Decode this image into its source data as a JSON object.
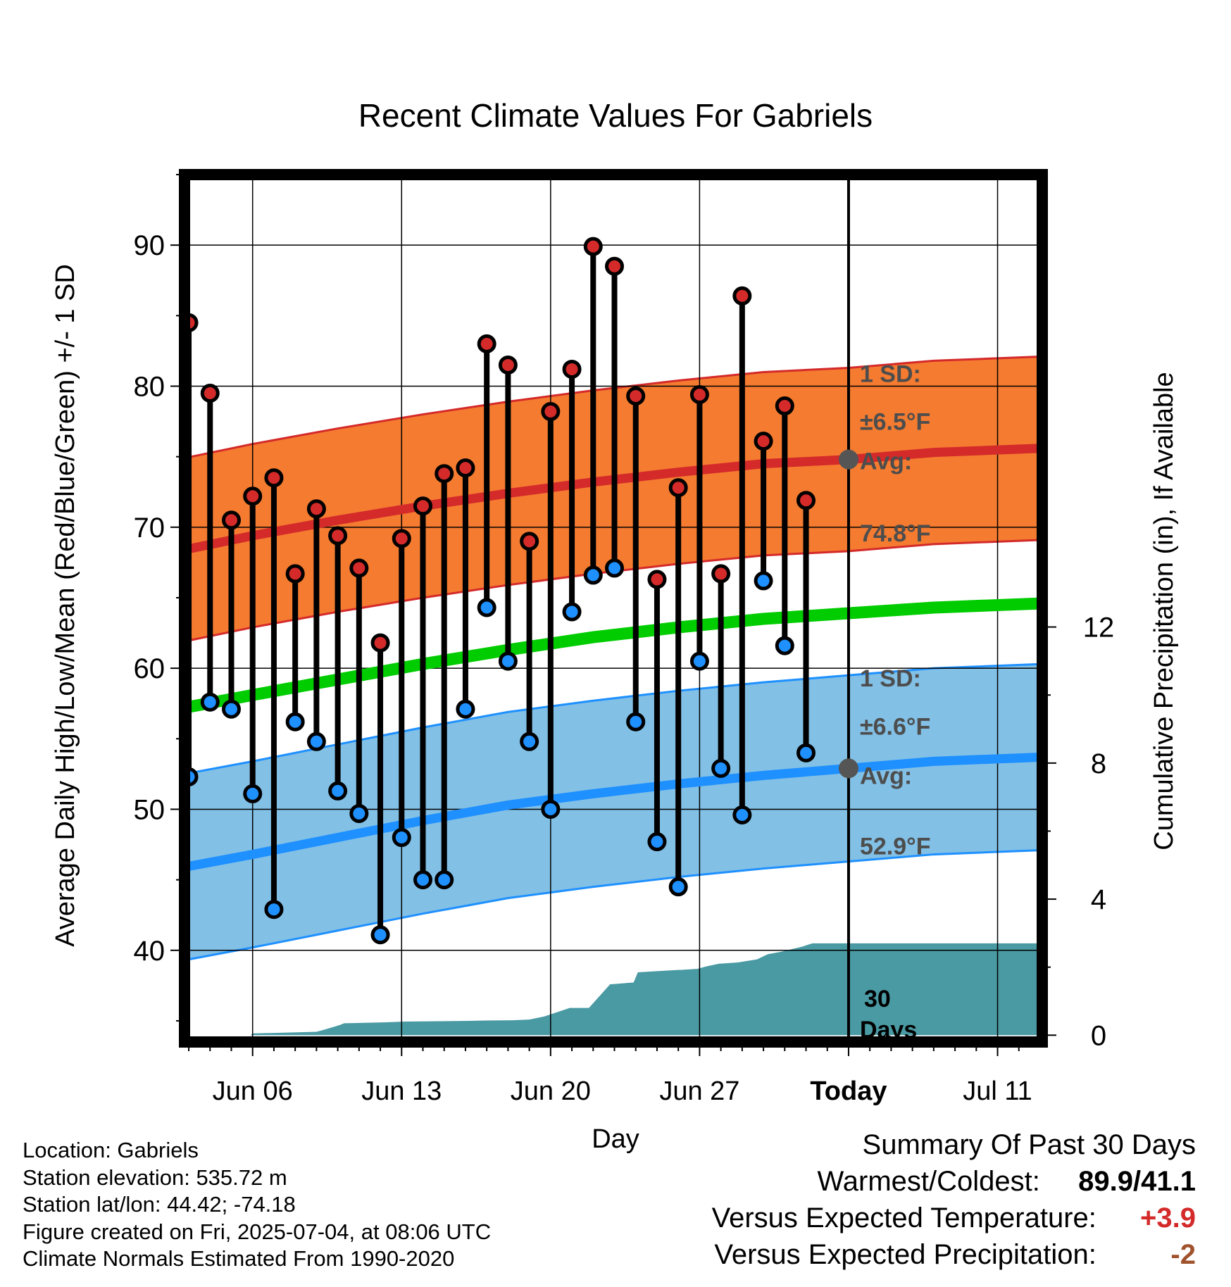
{
  "chart_data": {
    "type": "line",
    "title": "Recent Climate Values For Gabriels",
    "xlabel": "Day",
    "ylabel_left": "Average Daily High/Low/Mean (Red/Blue/Green) +/- 1 SD",
    "ylabel_right": "Cumulative Precipitation (in), If Available",
    "x_ticks": [
      {
        "day": 6,
        "label": "Jun 06"
      },
      {
        "day": 13,
        "label": "Jun 13"
      },
      {
        "day": 20,
        "label": "Jun 20"
      },
      {
        "day": 27,
        "label": "Jun 27"
      },
      {
        "day": 34,
        "label": "Today"
      },
      {
        "day": 41,
        "label": "Jul 11"
      }
    ],
    "xlim": [
      2.8,
      43.1
    ],
    "ylim_left": [
      33.5,
      95
    ],
    "ylim_right": [
      -0.2,
      25.3
    ],
    "y_ticks_left": [
      40,
      50,
      60,
      70,
      80,
      90
    ],
    "y_ticks_right": [
      0,
      4,
      8,
      12
    ],
    "today": 34,
    "observations": {
      "days": [
        3,
        4,
        5,
        6,
        7,
        8,
        9,
        10,
        11,
        12,
        13,
        14,
        15,
        16,
        17,
        18,
        19,
        20,
        21,
        22,
        23,
        24,
        25,
        26,
        27,
        28,
        29,
        30,
        31,
        32,
        33
      ],
      "high": [
        84.5,
        79.5,
        70.5,
        72.2,
        73.5,
        66.7,
        71.3,
        69.4,
        67.1,
        61.8,
        69.2,
        71.5,
        73.8,
        74.2,
        83.0,
        81.5,
        69.0,
        78.2,
        81.2,
        89.9,
        88.5,
        79.3,
        66.3,
        72.8,
        79.4,
        66.7,
        86.4,
        76.1,
        78.6,
        71.9,
        null
      ],
      "low": [
        52.3,
        57.6,
        57.1,
        51.1,
        42.9,
        56.2,
        54.8,
        51.3,
        49.7,
        41.1,
        48.0,
        45.0,
        45.0,
        57.1,
        64.3,
        60.5,
        54.8,
        50.0,
        64.0,
        66.6,
        67.1,
        56.2,
        47.7,
        44.5,
        60.5,
        52.9,
        49.6,
        66.2,
        61.6,
        54.0,
        null
      ]
    },
    "normals": {
      "days": [
        2.8,
        6,
        10,
        14,
        18,
        22,
        26,
        30,
        34,
        38,
        43.1
      ],
      "avg_high": [
        68.4,
        69.4,
        70.5,
        71.5,
        72.4,
        73.2,
        73.9,
        74.5,
        74.8,
        75.3,
        75.6
      ],
      "avg_low": [
        45.9,
        46.8,
        48.0,
        49.2,
        50.3,
        51.1,
        51.8,
        52.4,
        52.9,
        53.4,
        53.7
      ],
      "avg_mean": [
        57.2,
        58.1,
        59.2,
        60.3,
        61.3,
        62.2,
        62.9,
        63.5,
        63.9,
        64.3,
        64.6
      ],
      "high_sd": 6.5,
      "low_sd": 6.6
    },
    "precipitation": {
      "days": [
        2.8,
        5.9,
        6.0,
        9.0,
        9.3,
        10.1,
        10.3,
        12.3,
        13.1,
        16.2,
        16.9,
        18.2,
        19.0,
        19.7,
        20.9,
        21.8,
        22.8,
        22.9,
        23.9,
        24.1,
        26.0,
        26.1,
        26.9,
        27.3,
        27.9,
        28.8,
        29.7,
        30.2,
        30.8,
        31.8,
        32.3,
        43.1
      ],
      "cumulative": [
        0,
        0,
        0.05,
        0.1,
        0.15,
        0.3,
        0.35,
        0.38,
        0.4,
        0.42,
        0.43,
        0.44,
        0.46,
        0.55,
        0.8,
        0.8,
        1.5,
        1.5,
        1.55,
        1.85,
        1.92,
        1.92,
        1.95,
        2.02,
        2.1,
        2.14,
        2.23,
        2.38,
        2.45,
        2.6,
        2.7,
        2.7
      ]
    },
    "annotations": {
      "high_sd": "±6.5°F",
      "high_avg": "74.8°F",
      "low_sd": "±6.6°F",
      "low_avg": "52.9°F",
      "sd_label": "1 SD:",
      "avg_label": "Avg:",
      "window_label": "30 Days"
    },
    "colors": {
      "high_band": "#f47b30",
      "high_line": "#d42a2a",
      "low_band": "#82c0e6",
      "low_line": "#1e90ff",
      "mean_line": "#00cc00",
      "precip": "#4a9aa3",
      "high_marker": "#d42a2a",
      "low_marker": "#1e90ff",
      "annotation_text": "#4d4d4d",
      "today_marker": "#555555"
    }
  },
  "footer": {
    "location": "Location: Gabriels",
    "elevation": "Station elevation: 535.72 m",
    "latlon": "Station lat/lon: 44.42; -74.18",
    "created": "Figure created on Fri, 2025-07-04, at 08:06 UTC",
    "normals": "Climate Normals Estimated From 1990-2020"
  },
  "summary": {
    "title": "Summary Of Past 30 Days",
    "warm_cold_label": "Warmest/Coldest:",
    "warm_cold_value": "89.9/41.1",
    "temp_label": "Versus Expected Temperature:",
    "temp_value": "+3.9",
    "temp_color": "#d42a2a",
    "precip_label": "Versus Expected Precipitation:",
    "precip_value": "-2",
    "precip_color": "#a0522d"
  }
}
